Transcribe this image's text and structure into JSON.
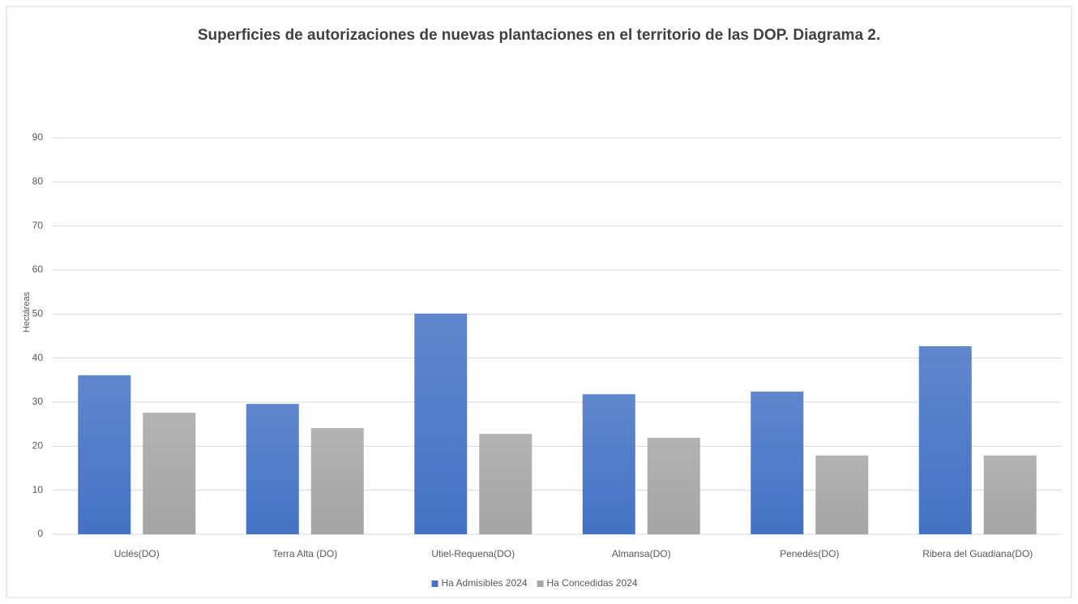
{
  "chart_data": {
    "type": "bar",
    "title": "Superficies de autorizaciones de nuevas plantaciones en el territorio de las DOP. Diagrama 2.",
    "y_label": "Hectáreas",
    "categories": [
      "Uclés(DO)",
      "Terra Alta (DO)",
      "Utiel-Requena(DO)",
      "Almansa(DO)",
      "Penedés(DO)",
      "Ribera del Guadiana(DO)"
    ],
    "series": [
      {
        "name": "Ha Admisibles 2024",
        "color": "#4472c4",
        "values": [
          36.1,
          29.6,
          50.1,
          31.8,
          32.4,
          42.7
        ]
      },
      {
        "name": "Ha Concedidas 2024",
        "color": "#a5a5a5",
        "values": [
          27.6,
          24.1,
          22.8,
          21.9,
          17.9,
          17.9
        ]
      }
    ],
    "ylim": [
      0,
      90
    ],
    "yticks": [
      0,
      10,
      20,
      30,
      40,
      50,
      60,
      70,
      80,
      90
    ],
    "grid": true,
    "legend": "bottom"
  }
}
